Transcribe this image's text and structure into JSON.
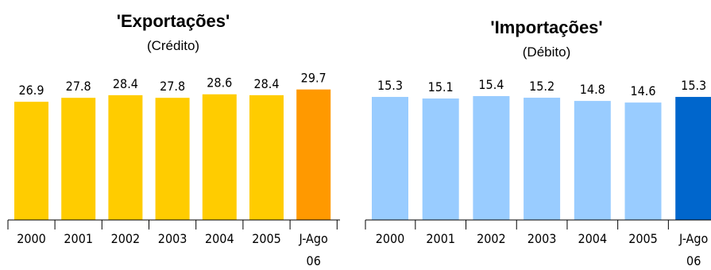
{
  "chart_data": [
    {
      "type": "bar",
      "title": "'Exportações'",
      "subtitle": "(Crédito)",
      "categories": [
        [
          "2000"
        ],
        [
          "2001"
        ],
        [
          "2002"
        ],
        [
          "2003"
        ],
        [
          "2004"
        ],
        [
          "2005"
        ],
        [
          "J-Ago",
          "06"
        ]
      ],
      "values": [
        26.9,
        27.8,
        28.4,
        27.8,
        28.6,
        28.4,
        29.7
      ],
      "value_labels": [
        "26.9",
        "27.8",
        "28.4",
        "27.8",
        "28.6",
        "28.4",
        "29.7"
      ],
      "colors": [
        "#FFCC00",
        "#FFCC00",
        "#FFCC00",
        "#FFCC00",
        "#FFCC00",
        "#FFCC00",
        "#FF9900"
      ],
      "ylim": [
        0,
        30
      ],
      "grid": false,
      "legend": "none",
      "xlabel": "",
      "ylabel": ""
    },
    {
      "type": "bar",
      "title": "'Importações'",
      "subtitle": "(Débito)",
      "categories": [
        [
          "2000"
        ],
        [
          "2001"
        ],
        [
          "2002"
        ],
        [
          "2003"
        ],
        [
          "2004"
        ],
        [
          "2005"
        ],
        [
          "J-Ago",
          "06"
        ]
      ],
      "values": [
        15.3,
        15.1,
        15.4,
        15.2,
        14.8,
        14.6,
        15.3
      ],
      "value_labels": [
        "15.3",
        "15.1",
        "15.4",
        "15.2",
        "14.8",
        "14.6",
        "15.3"
      ],
      "colors": [
        "#99CCFF",
        "#99CCFF",
        "#99CCFF",
        "#99CCFF",
        "#99CCFF",
        "#99CCFF",
        "#0066CC"
      ],
      "ylim": [
        0,
        15.6
      ],
      "grid": false,
      "legend": "none",
      "xlabel": "",
      "ylabel": ""
    }
  ]
}
